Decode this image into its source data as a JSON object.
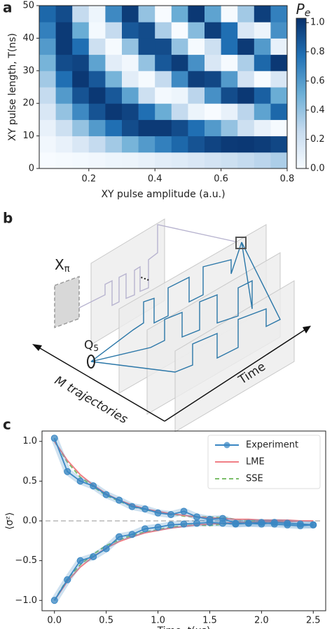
{
  "panel_labels": [
    "a",
    "b",
    "c"
  ],
  "chart_data": [
    {
      "type": "heatmap",
      "xlabel": "XY pulse amplitude (a.u.)",
      "ylabel": "XY pulse length, T(ns)",
      "xlim": [
        0.05,
        0.8
      ],
      "ylim": [
        0,
        50
      ],
      "xticks": [
        0.2,
        0.4,
        0.6,
        0.8
      ],
      "yticks": [
        0,
        10,
        20,
        30,
        40,
        50
      ],
      "xbins": [
        0.05,
        0.1,
        0.15,
        0.2,
        0.25,
        0.3,
        0.35,
        0.4,
        0.45,
        0.5,
        0.55,
        0.6,
        0.65,
        0.7,
        0.75,
        0.8
      ],
      "ybins": [
        0,
        5,
        10,
        15,
        20,
        25,
        30,
        35,
        40,
        45,
        50
      ],
      "colormap": "Blues",
      "zlim": [
        0,
        1.03
      ],
      "colorbar_label": {
        "text": "P",
        "sub": "e"
      },
      "colorbar_ticks": [
        {
          "value": 0,
          "label": "0.0"
        },
        0.2,
        0.4,
        0.6,
        0.8,
        {
          "value": 1,
          "label": "1.0"
        }
      ],
      "values": [
        [
          0.0,
          0.01,
          0.02,
          0.03,
          0.05,
          0.06,
          0.08,
          0.11,
          0.13,
          0.16,
          0.19,
          0.22,
          0.26,
          0.29,
          0.33
        ],
        [
          0.03,
          0.08,
          0.16,
          0.26,
          0.36,
          0.48,
          0.6,
          0.71,
          0.81,
          0.89,
          0.95,
          0.99,
          1.0,
          0.98,
          0.94
        ],
        [
          0.08,
          0.22,
          0.4,
          0.6,
          0.78,
          0.92,
          0.99,
          0.99,
          0.92,
          0.78,
          0.6,
          0.4,
          0.22,
          0.08,
          0.01
        ],
        [
          0.16,
          0.4,
          0.67,
          0.89,
          1.0,
          0.95,
          0.78,
          0.52,
          0.26,
          0.06,
          0.0,
          0.08,
          0.29,
          0.56,
          0.81
        ],
        [
          0.26,
          0.6,
          0.89,
          1.0,
          0.87,
          0.56,
          0.22,
          0.02,
          0.05,
          0.29,
          0.64,
          0.92,
          1.0,
          0.84,
          0.52
        ],
        [
          0.36,
          0.78,
          1.0,
          0.87,
          0.48,
          0.11,
          0.01,
          0.26,
          0.67,
          0.97,
          0.94,
          0.6,
          0.19,
          0.0,
          0.16
        ],
        [
          0.48,
          0.92,
          0.95,
          0.56,
          0.11,
          0.03,
          0.4,
          0.87,
          0.98,
          0.64,
          0.16,
          0.01,
          0.33,
          0.81,
          1.0
        ],
        [
          0.6,
          0.99,
          0.78,
          0.22,
          0.01,
          0.4,
          0.92,
          0.92,
          0.4,
          0.01,
          0.22,
          0.78,
          0.99,
          0.6,
          0.08
        ],
        [
          0.71,
          0.99,
          0.52,
          0.02,
          0.26,
          0.87,
          0.92,
          0.33,
          0.0,
          0.44,
          0.97,
          0.78,
          0.16,
          0.06,
          0.64
        ],
        [
          0.81,
          0.92,
          0.26,
          0.05,
          0.67,
          0.98,
          0.4,
          0.0,
          0.52,
          1.0,
          0.56,
          0.01,
          0.36,
          0.97,
          0.71
        ]
      ]
    },
    {
      "type": "line",
      "xlabel": "Time, t(μs)",
      "ylabel": "⟨σᶻ⟩",
      "xlim": [
        -0.12,
        2.62
      ],
      "ylim": [
        -1.13,
        1.13
      ],
      "xticks": [
        {
          "value": 0,
          "label": "0.0"
        },
        0.5,
        {
          "value": 1,
          "label": "1.0"
        },
        1.5,
        {
          "value": 2,
          "label": "2.0"
        },
        2.5
      ],
      "yticks": [
        {
          "value": -1,
          "label": "−1.0"
        },
        {
          "value": -0.5,
          "label": "−0.5"
        },
        {
          "value": 0,
          "label": "0.0"
        },
        0.5,
        {
          "value": 1,
          "label": "1.0"
        }
      ],
      "legend": "upper right",
      "x": [
        0,
        0.125,
        0.25,
        0.375,
        0.5,
        0.625,
        0.75,
        0.875,
        1,
        1.125,
        1.25,
        1.375,
        1.5,
        1.625,
        1.75,
        1.875,
        2,
        2.125,
        2.25,
        2.375,
        2.5
      ],
      "series": [
        {
          "name": "Experiment",
          "color": "#3a87c3",
          "marker": true,
          "dash": false,
          "values": [
            [
              1.04,
              0.62,
              0.5,
              0.44,
              0.33,
              0.26,
              0.18,
              0.15,
              0.1,
              0.08,
              0.12,
              0.05,
              0.02,
              0.03,
              -0.03,
              -0.03,
              -0.02,
              -0.04,
              -0.05,
              -0.06,
              -0.05
            ],
            [
              -1.0,
              -0.74,
              -0.5,
              -0.45,
              -0.35,
              -0.2,
              -0.17,
              -0.1,
              -0.08,
              -0.05,
              -0.04,
              -0.03,
              -0.02,
              -0.03,
              -0.04,
              -0.03,
              -0.04,
              -0.02,
              -0.03,
              -0.04,
              -0.05
            ]
          ]
        },
        {
          "name": "LME",
          "color": "#f07f86",
          "marker": false,
          "dash": false,
          "values": [
            [
              1.0,
              0.76,
              0.58,
              0.45,
              0.34,
              0.26,
              0.2,
              0.15,
              0.12,
              0.09,
              0.07,
              0.05,
              0.04,
              0.03,
              0.02,
              0.02,
              0.01,
              0.01,
              0.01,
              0.0,
              0.0
            ],
            [
              -1.0,
              -0.76,
              -0.58,
              -0.45,
              -0.34,
              -0.26,
              -0.2,
              -0.15,
              -0.12,
              -0.09,
              -0.07,
              -0.05,
              -0.04,
              -0.03,
              -0.02,
              -0.02,
              -0.01,
              -0.01,
              -0.01,
              0.0,
              0.0
            ]
          ]
        },
        {
          "name": "SSE",
          "color": "#7cbf6a",
          "marker": false,
          "dash": true,
          "values": [
            [
              1.0,
              0.74,
              0.55,
              0.43,
              0.32,
              0.25,
              0.18,
              0.14,
              0.11,
              0.09,
              0.06,
              0.05,
              0.05,
              0.04,
              0.02,
              0.01,
              0.01,
              0.01,
              0.0,
              0.0,
              0.0
            ],
            [
              -1.0,
              -0.73,
              -0.55,
              -0.42,
              -0.31,
              -0.24,
              -0.18,
              -0.14,
              -0.11,
              -0.08,
              -0.06,
              -0.05,
              -0.06,
              -0.04,
              -0.02,
              -0.01,
              -0.01,
              -0.01,
              0.0,
              0.0,
              0.0
            ]
          ]
        }
      ]
    }
  ],
  "diagram": {
    "gate": {
      "text": "X",
      "sub": "π"
    },
    "qubit": {
      "text": "Q",
      "sub": "5"
    },
    "ellipsis": "•••",
    "trajectories_axis": "M trajectories",
    "time_axis": "Time"
  }
}
